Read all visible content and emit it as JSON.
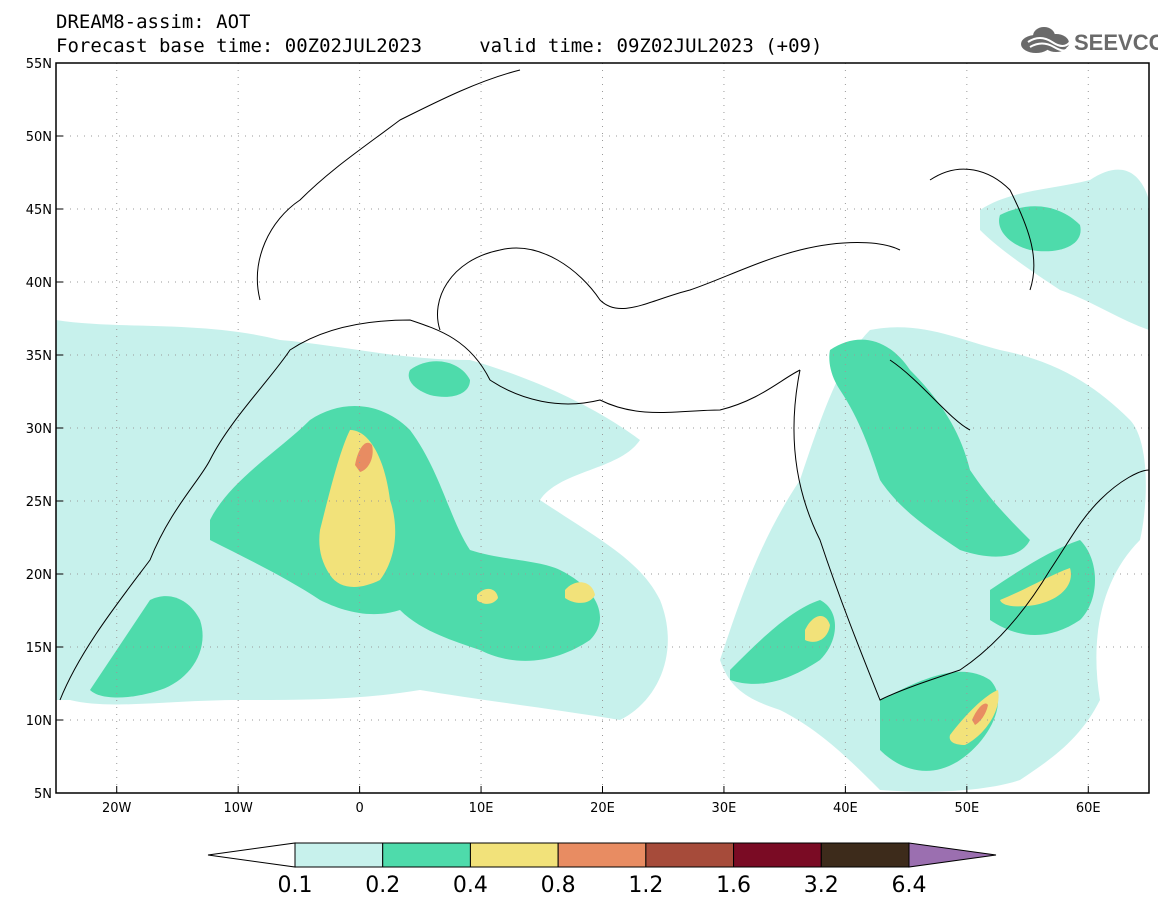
{
  "header": {
    "line1": "DREAM8-assim: AOT",
    "line2": "Forecast base time: 00Z02JUL2023     valid time: 09Z02JUL2023 (+09)"
  },
  "logo": {
    "text": "SEEVCCC",
    "icon": "cloud-icon"
  },
  "map": {
    "lon_range": [
      -25,
      65
    ],
    "lat_range": [
      5,
      55
    ],
    "lat_ticks": [
      {
        "lat": 55,
        "label": "55N"
      },
      {
        "lat": 50,
        "label": "50N"
      },
      {
        "lat": 45,
        "label": "45N"
      },
      {
        "lat": 40,
        "label": "40N"
      },
      {
        "lat": 35,
        "label": "35N"
      },
      {
        "lat": 30,
        "label": "30N"
      },
      {
        "lat": 25,
        "label": "25N"
      },
      {
        "lat": 20,
        "label": "20N"
      },
      {
        "lat": 15,
        "label": "15N"
      },
      {
        "lat": 10,
        "label": "10N"
      },
      {
        "lat": 5,
        "label": "5N"
      }
    ],
    "lon_ticks": [
      {
        "lon": -20,
        "label": "20W"
      },
      {
        "lon": -10,
        "label": "10W"
      },
      {
        "lon": 0,
        "label": "0"
      },
      {
        "lon": 10,
        "label": "10E"
      },
      {
        "lon": 20,
        "label": "20E"
      },
      {
        "lon": 30,
        "label": "30E"
      },
      {
        "lon": 40,
        "label": "40E"
      },
      {
        "lon": 50,
        "label": "50E"
      },
      {
        "lon": 60,
        "label": "60E"
      }
    ],
    "grid": true
  },
  "colorbar": {
    "colors": [
      "#ffffff",
      "#c7f1ec",
      "#4edbab",
      "#f2e27a",
      "#e88c62",
      "#a64b3a",
      "#7a0b24",
      "#3d2b1b",
      "#9b6fb0"
    ],
    "labels": [
      "0.1",
      "0.2",
      "0.4",
      "0.8",
      "1.2",
      "1.6",
      "3.2",
      "6.4"
    ]
  }
}
